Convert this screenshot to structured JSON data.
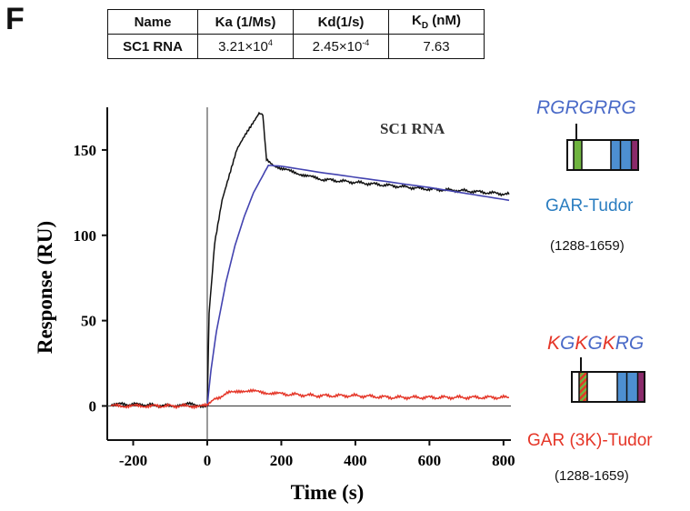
{
  "panel_label": "F",
  "table": {
    "headers": [
      "Name",
      "Ka (1/Ms)",
      "Kd(1/s)",
      "K_D (nM)"
    ],
    "header_parts": {
      "kd_main": "K",
      "kd_sub": "D",
      "kd_tail": " (nM)"
    },
    "row": {
      "name": "SC1 RNA",
      "ka_mant": "3.21×10",
      "ka_exp": "4",
      "kd_mant": "2.45×10",
      "kd_exp": "-4",
      "KD": "7.63"
    }
  },
  "constructs": [
    {
      "sequence": "RGRGRRG",
      "name": "GAR-Tudor",
      "range": "(1288-1659)",
      "name_color": "#2a7dc0",
      "seq_color": "#4a6ac8"
    },
    {
      "sequence_parts": [
        {
          "t": "K",
          "c": "#e53628"
        },
        {
          "t": "G",
          "c": "#4a6ac8"
        },
        {
          "t": "K",
          "c": "#e53628"
        },
        {
          "t": "G",
          "c": "#4a6ac8"
        },
        {
          "t": "K",
          "c": "#e53628"
        },
        {
          "t": "RG",
          "c": "#4a6ac8"
        }
      ],
      "name": "GAR (3K)-Tudor",
      "range": "(1288-1659)",
      "name_color": "#e53628"
    }
  ],
  "chart_data": {
    "type": "line",
    "title": "SC1 RNA",
    "xlabel": "Time (s)",
    "ylabel": "Response (RU)",
    "xlim": [
      -270,
      820
    ],
    "ylim": [
      -20,
      175
    ],
    "xticks": [
      -200,
      0,
      200,
      400,
      600,
      800
    ],
    "yticks": [
      0,
      50,
      100,
      150
    ],
    "series": [
      {
        "name": "GAR-Tudor (data)",
        "color": "#111111",
        "x": [
          -260,
          -200,
          -100,
          -50,
          0,
          5,
          20,
          40,
          60,
          80,
          100,
          120,
          140,
          150,
          160,
          180,
          200,
          250,
          300,
          400,
          500,
          600,
          700,
          815
        ],
        "y": [
          1,
          1,
          0,
          1,
          0,
          55,
          95,
          120,
          135,
          150,
          158,
          165,
          172,
          170,
          145,
          141,
          139,
          136,
          133,
          131,
          129,
          127,
          126,
          124
        ]
      },
      {
        "name": "GAR-Tudor (fit)",
        "color": "#4343b0",
        "x": [
          0,
          10,
          25,
          50,
          75,
          100,
          125,
          150,
          165,
          200,
          300,
          400,
          500,
          600,
          700,
          815
        ],
        "y": [
          0,
          21,
          44,
          72,
          94,
          111,
          125,
          135,
          141,
          140.5,
          137,
          134,
          131,
          128,
          124.5,
          120.5
        ]
      },
      {
        "name": "GAR (3K)-Tudor (data)",
        "color": "#e53628",
        "x": [
          -260,
          -150,
          -50,
          0,
          20,
          50,
          80,
          100,
          150,
          200,
          300,
          400,
          500,
          600,
          700,
          815
        ],
        "y": [
          0,
          0,
          0,
          0,
          4,
          7,
          9,
          9,
          8,
          7,
          6,
          6,
          5,
          5,
          5,
          5
        ]
      }
    ],
    "grid": false,
    "legend": "none"
  }
}
